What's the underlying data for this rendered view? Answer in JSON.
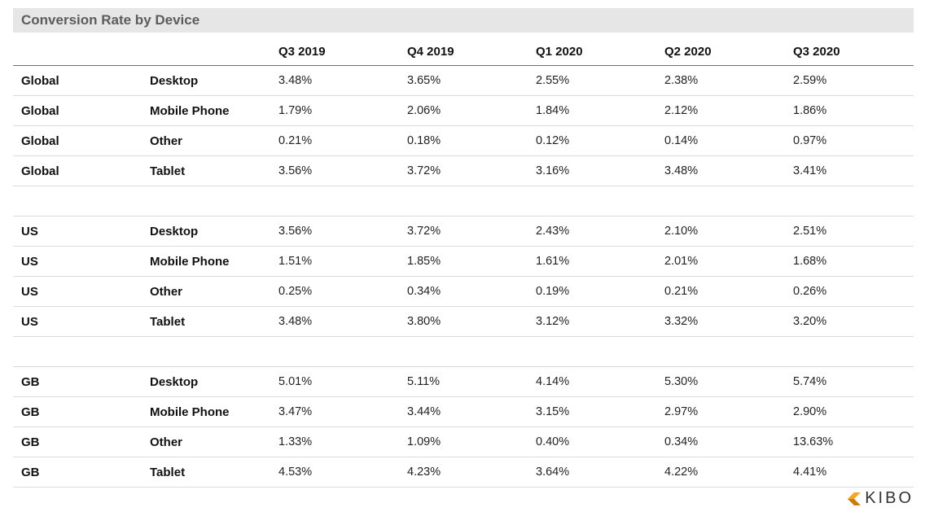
{
  "chart_data": {
    "type": "table",
    "title": "Conversion Rate by Device",
    "columns": [
      "Q3 2019",
      "Q4 2019",
      "Q1 2020",
      "Q2 2020",
      "Q3 2020"
    ],
    "groups": [
      {
        "rows": [
          {
            "region": "Global",
            "device": "Desktop",
            "values": [
              "3.48%",
              "3.65%",
              "2.55%",
              "2.38%",
              "2.59%"
            ]
          },
          {
            "region": "Global",
            "device": "Mobile Phone",
            "values": [
              "1.79%",
              "2.06%",
              "1.84%",
              "2.12%",
              "1.86%"
            ]
          },
          {
            "region": "Global",
            "device": "Other",
            "values": [
              "0.21%",
              "0.18%",
              "0.12%",
              "0.14%",
              "0.97%"
            ]
          },
          {
            "region": "Global",
            "device": "Tablet",
            "values": [
              "3.56%",
              "3.72%",
              "3.16%",
              "3.48%",
              "3.41%"
            ]
          }
        ]
      },
      {
        "rows": [
          {
            "region": "US",
            "device": "Desktop",
            "values": [
              "3.56%",
              "3.72%",
              "2.43%",
              "2.10%",
              "2.51%"
            ]
          },
          {
            "region": "US",
            "device": "Mobile Phone",
            "values": [
              "1.51%",
              "1.85%",
              "1.61%",
              "2.01%",
              "1.68%"
            ]
          },
          {
            "region": "US",
            "device": "Other",
            "values": [
              "0.25%",
              "0.34%",
              "0.19%",
              "0.21%",
              "0.26%"
            ]
          },
          {
            "region": "US",
            "device": "Tablet",
            "values": [
              "3.48%",
              "3.80%",
              "3.12%",
              "3.32%",
              "3.20%"
            ]
          }
        ]
      },
      {
        "rows": [
          {
            "region": "GB",
            "device": "Desktop",
            "values": [
              "5.01%",
              "5.11%",
              "4.14%",
              "5.30%",
              "5.74%"
            ]
          },
          {
            "region": "GB",
            "device": "Mobile Phone",
            "values": [
              "3.47%",
              "3.44%",
              "3.15%",
              "2.97%",
              "2.90%"
            ]
          },
          {
            "region": "GB",
            "device": "Other",
            "values": [
              "1.33%",
              "1.09%",
              "0.40%",
              "0.34%",
              "13.63%"
            ]
          },
          {
            "region": "GB",
            "device": "Tablet",
            "values": [
              "4.53%",
              "4.23%",
              "3.64%",
              "4.22%",
              "4.41%"
            ]
          }
        ]
      }
    ]
  },
  "logo": {
    "text": "KIBO",
    "colors": {
      "mark": "#f5a623",
      "mark_dark": "#c97d0e",
      "text": "#333333"
    }
  }
}
